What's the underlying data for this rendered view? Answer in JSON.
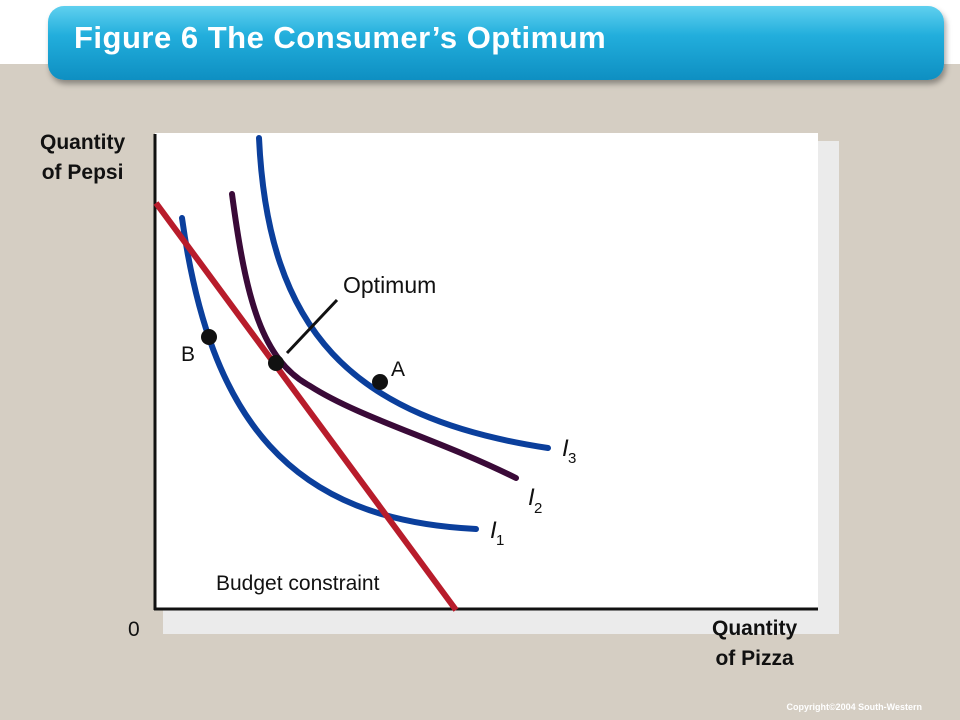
{
  "title": "Figure 6 The Consumer’s Optimum",
  "axes": {
    "y_label_line1": "Quantity",
    "y_label_line2": "of Pepsi",
    "x_label_line1": "Quantity",
    "x_label_line2": "of Pizza",
    "origin": "0"
  },
  "labels": {
    "optimum": "Optimum",
    "point_a": "A",
    "point_b": "B",
    "budget_constraint": "Budget constraint",
    "curve_letter": "I",
    "i1_sub": "1",
    "i2_sub": "2",
    "i3_sub": "3"
  },
  "colors": {
    "indifference_blue": "#0b3f9c",
    "indifference_dark": "#3a0a38",
    "budget_red": "#b81c2b",
    "axis": "#111111"
  },
  "copyright": "Copyright©2004 South-Western"
}
